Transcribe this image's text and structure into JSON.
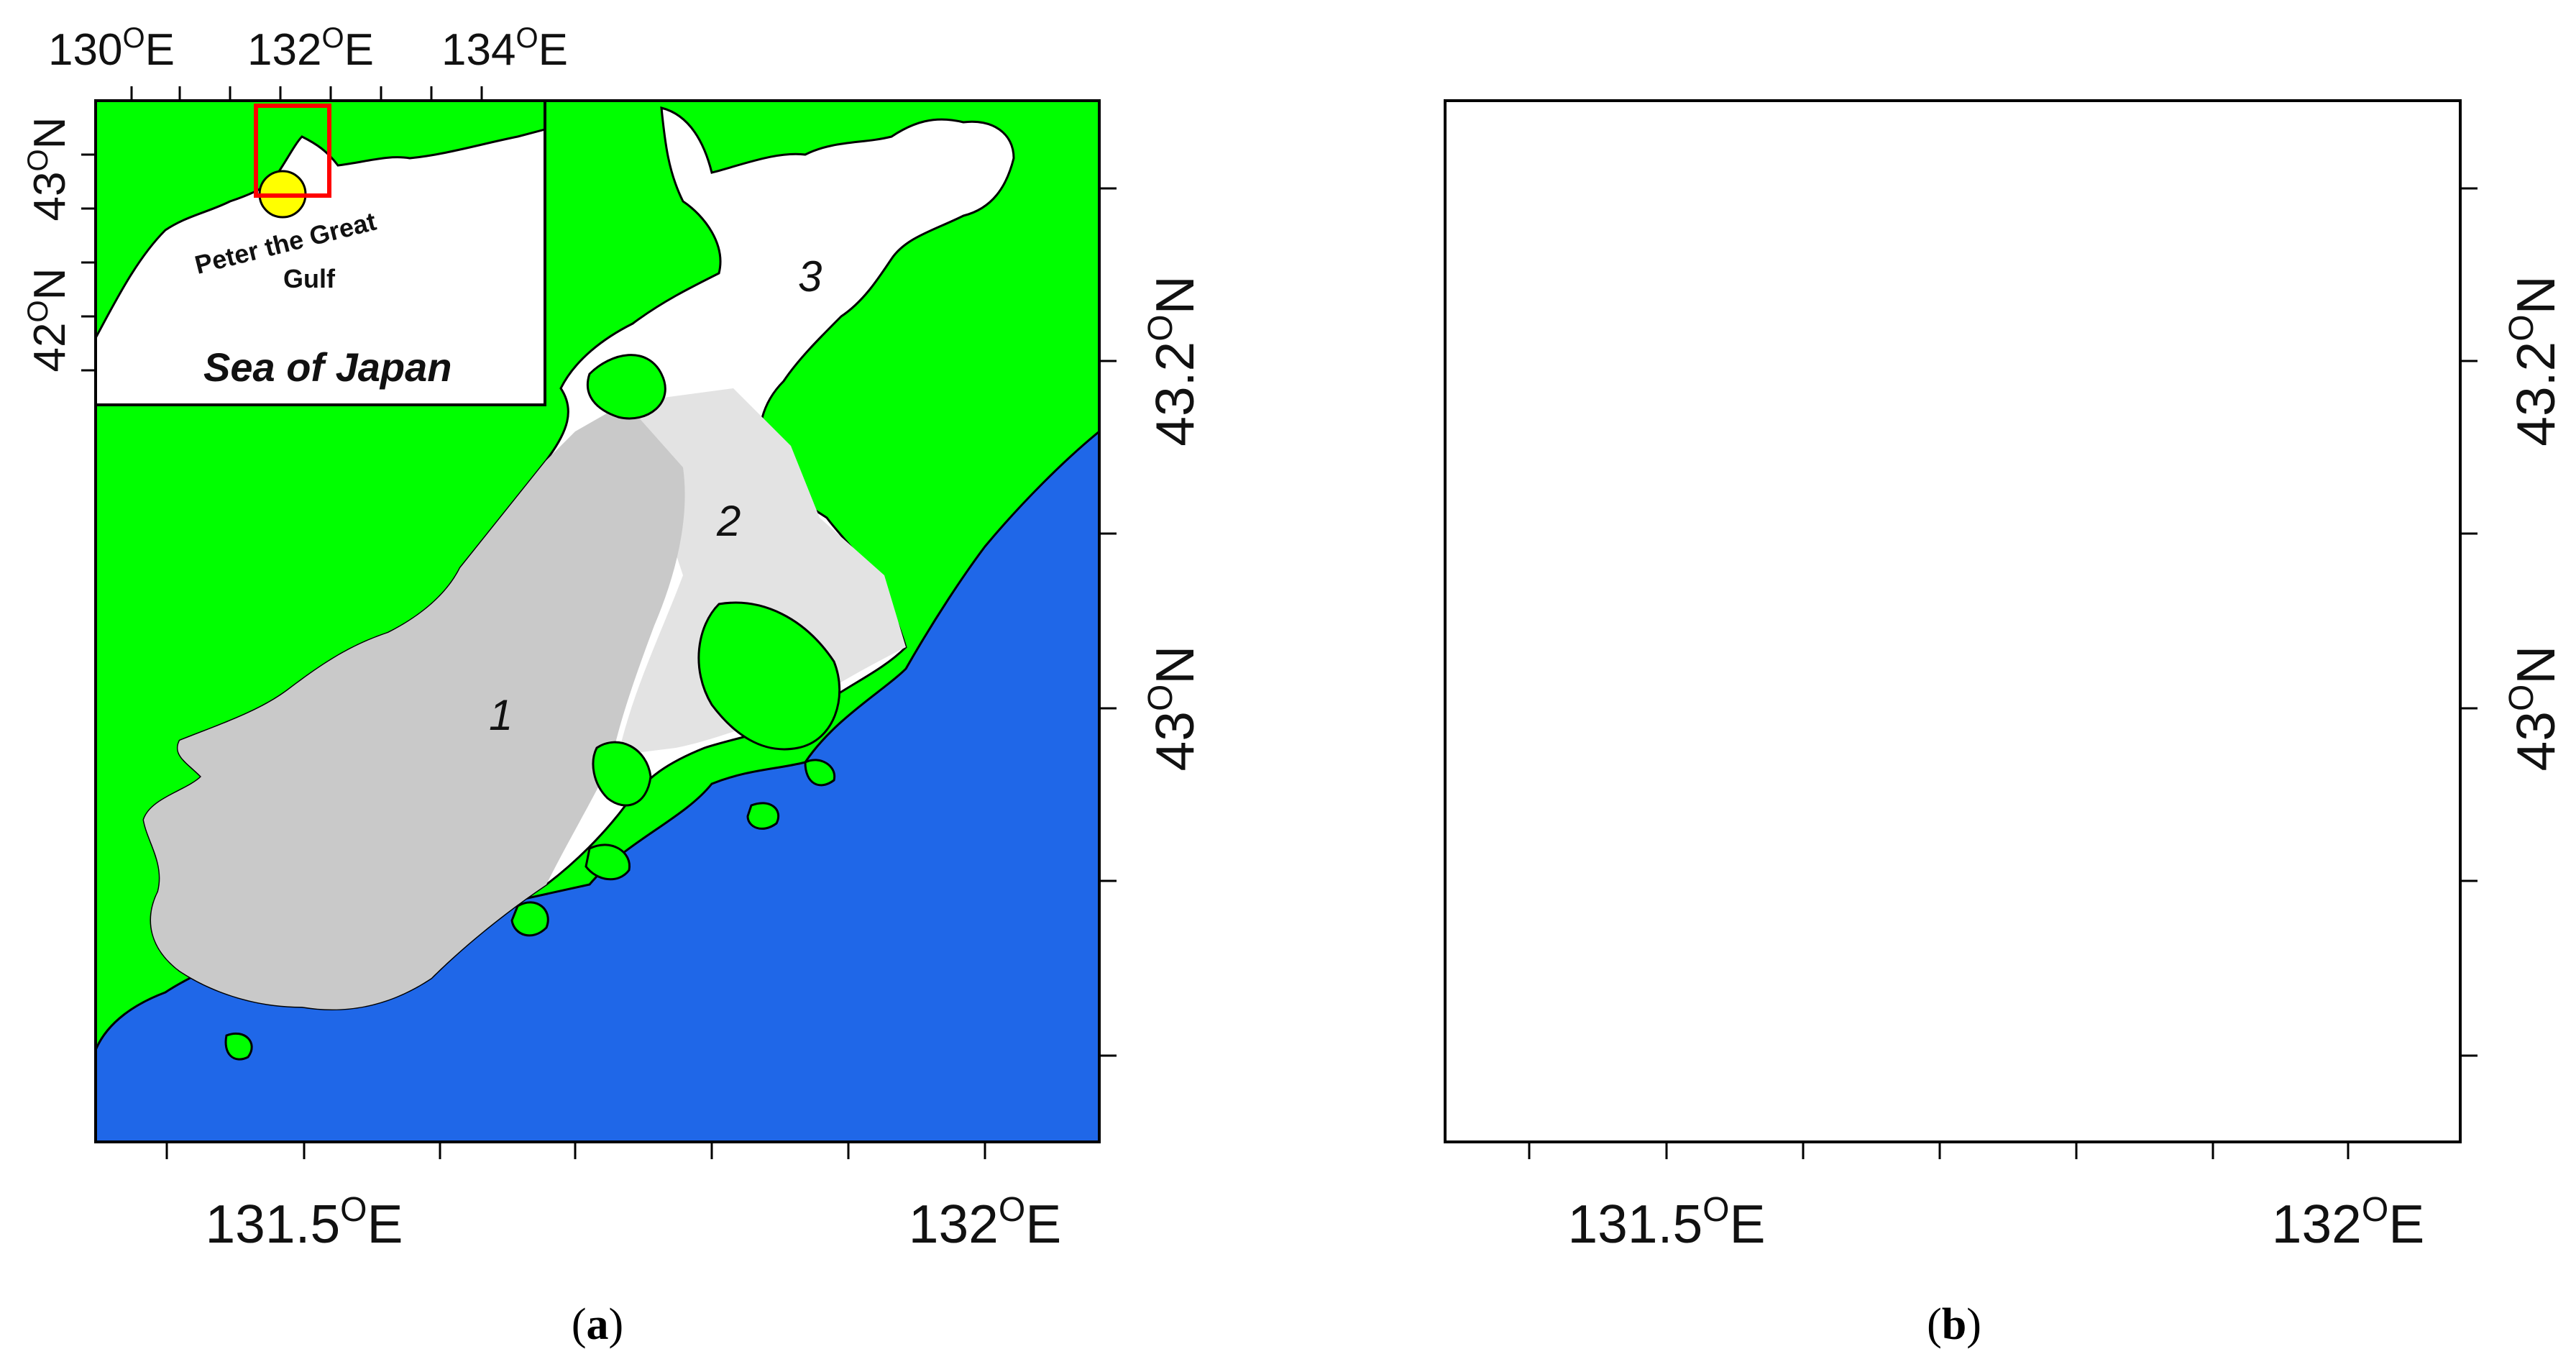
{
  "colors": {
    "land": "#00ff00",
    "sea": "#1f67e8",
    "bay_white": "#ffffff",
    "zone1": "#c9c9c9",
    "zone2": "#e3e3e3",
    "bay_b": "#e3e3e3",
    "inset_box": "#ff0000",
    "inset_marker": "#ffff00"
  },
  "panel_a": {
    "caption": "(a)",
    "zones": [
      "1",
      "2",
      "3"
    ],
    "x_ticks": [
      {
        "label": "131.5",
        "sup": "O",
        "suffix": "E"
      },
      {
        "label": "132",
        "sup": "O",
        "suffix": "E"
      }
    ],
    "y_ticks": [
      {
        "label": "43.2",
        "sup": "O",
        "suffix": "N"
      },
      {
        "label": "43",
        "sup": "O",
        "suffix": "N"
      }
    ]
  },
  "panel_b": {
    "caption": "(b)",
    "x_ticks": [
      {
        "label": "131.5",
        "sup": "O",
        "suffix": "E"
      },
      {
        "label": "132",
        "sup": "O",
        "suffix": "E"
      }
    ],
    "y_ticks": [
      {
        "label": "43.2",
        "sup": "O",
        "suffix": "N"
      },
      {
        "label": "43",
        "sup": "O",
        "suffix": "N"
      }
    ]
  },
  "inset": {
    "x_ticks": [
      {
        "label": "130",
        "sup": "O",
        "suffix": "E"
      },
      {
        "label": "132",
        "sup": "O",
        "suffix": "E"
      },
      {
        "label": "134",
        "sup": "O",
        "suffix": "E"
      }
    ],
    "y_ticks": [
      {
        "label": "43",
        "sup": "O",
        "suffix": "N"
      },
      {
        "label": "42",
        "sup": "O",
        "suffix": "N"
      }
    ],
    "gulf_line1": "Peter the Great",
    "gulf_line2": "Gulf",
    "sea_label": "Sea of Japan"
  }
}
